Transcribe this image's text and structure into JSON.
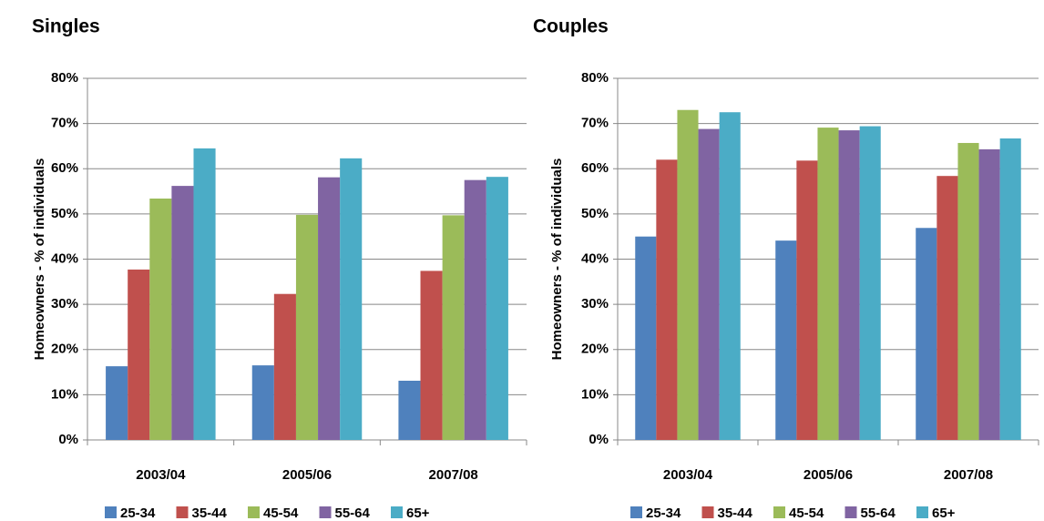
{
  "chart_data": [
    {
      "type": "bar",
      "title": "Singles",
      "y_label": "Homeowners - % of individuals",
      "categories": [
        "2003/04",
        "2005/06",
        "2007/08"
      ],
      "series": [
        {
          "name": "25-34",
          "color": "#4f81bd",
          "values": [
            16.3,
            16.5,
            13.1
          ]
        },
        {
          "name": "35-44",
          "color": "#c0504d",
          "values": [
            37.7,
            32.3,
            37.4
          ]
        },
        {
          "name": "45-54",
          "color": "#9bbb59",
          "values": [
            53.4,
            49.8,
            49.7
          ]
        },
        {
          "name": "55-64",
          "color": "#8064a2",
          "values": [
            56.2,
            58.1,
            57.5
          ]
        },
        {
          "name": "65+",
          "color": "#4bacc6",
          "values": [
            64.5,
            62.3,
            58.2
          ]
        }
      ],
      "ylim": [
        0,
        80
      ],
      "yticks": [
        {
          "value": 0,
          "label": "0%"
        },
        {
          "value": 10,
          "label": "10%"
        },
        {
          "value": 20,
          "label": "20%"
        },
        {
          "value": 30,
          "label": "30%"
        },
        {
          "value": 40,
          "label": "40%"
        },
        {
          "value": 50,
          "label": "50%"
        },
        {
          "value": 60,
          "label": "60%"
        },
        {
          "value": 70,
          "label": "70%"
        },
        {
          "value": 80,
          "label": "80%"
        }
      ],
      "grid": true,
      "legend": "bottom"
    },
    {
      "type": "bar",
      "title": "Couples",
      "y_label": "Homeowners - % of individuals",
      "categories": [
        "2003/04",
        "2005/06",
        "2007/08"
      ],
      "series": [
        {
          "name": "25-34",
          "color": "#4f81bd",
          "values": [
            45.0,
            44.1,
            46.9
          ]
        },
        {
          "name": "35-44",
          "color": "#c0504d",
          "values": [
            62.0,
            61.8,
            58.4
          ]
        },
        {
          "name": "45-54",
          "color": "#9bbb59",
          "values": [
            73.0,
            69.1,
            65.7
          ]
        },
        {
          "name": "55-64",
          "color": "#8064a2",
          "values": [
            68.8,
            68.5,
            64.3
          ]
        },
        {
          "name": "65+",
          "color": "#4bacc6",
          "values": [
            72.5,
            69.4,
            66.7
          ]
        }
      ],
      "ylim": [
        0,
        80
      ],
      "yticks": [
        {
          "value": 0,
          "label": "0%"
        },
        {
          "value": 10,
          "label": "10%"
        },
        {
          "value": 20,
          "label": "20%"
        },
        {
          "value": 30,
          "label": "30%"
        },
        {
          "value": 40,
          "label": "40%"
        },
        {
          "value": 50,
          "label": "50%"
        },
        {
          "value": 60,
          "label": "60%"
        },
        {
          "value": 70,
          "label": "70%"
        },
        {
          "value": 80,
          "label": "80%"
        }
      ],
      "grid": true,
      "legend": "bottom"
    }
  ]
}
